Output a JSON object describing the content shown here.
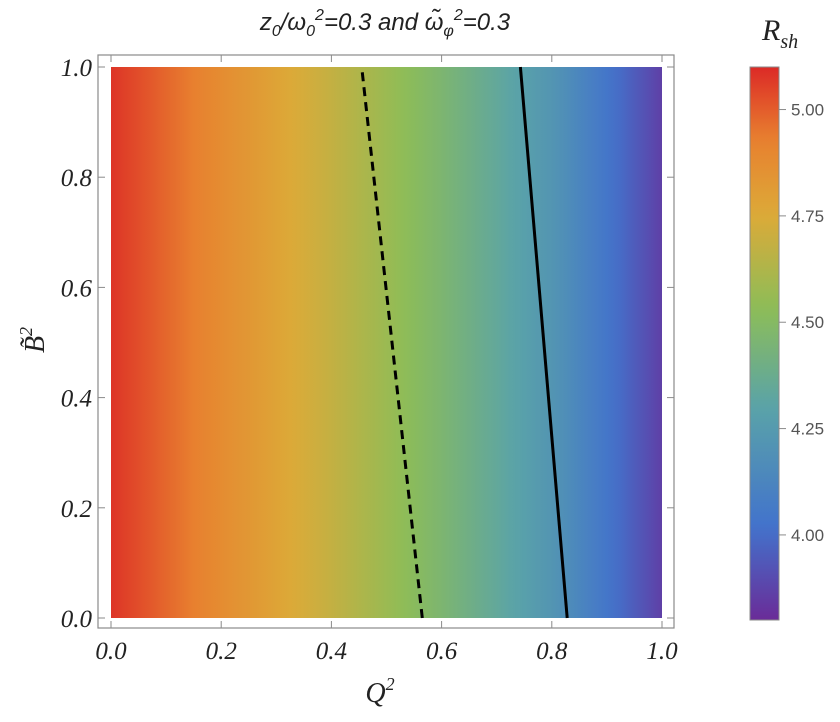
{
  "chart_data": {
    "type": "heatmap",
    "title": "z₀/ω₀²=0.3 and ω̃ᵩ²=0.3",
    "title_parts": {
      "a": "z",
      "a_sub": "0",
      "b": "/ω",
      "b_sub": "0",
      "b_sup": "2",
      "c": "=0.3 and ",
      "d": "ω̃",
      "d_sub": "φ",
      "d_sup": "2",
      "e": "=0.3"
    },
    "xlabel": "Q²",
    "xlabel_parts": {
      "base": "Q",
      "sup": "2"
    },
    "ylabel": "B̃²",
    "ylabel_parts": {
      "base": "B̃",
      "sup": "2"
    },
    "xlim": [
      0.0,
      1.0
    ],
    "ylim": [
      0.0,
      1.0
    ],
    "x_ticks": [
      "0.0",
      "0.2",
      "0.4",
      "0.6",
      "0.8",
      "1.0"
    ],
    "y_ticks": [
      "0.0",
      "0.2",
      "0.4",
      "0.6",
      "0.8",
      "1.0"
    ],
    "colorbar": {
      "title": "R",
      "title_sub": "sh",
      "range": [
        3.8,
        5.1
      ],
      "ticks": [
        "4.00",
        "4.25",
        "4.50",
        "4.75",
        "5.00"
      ]
    },
    "field_along_x": {
      "x": [
        0.0,
        0.2,
        0.4,
        0.6,
        0.8,
        1.0
      ],
      "value": [
        5.08,
        4.88,
        4.68,
        4.46,
        4.22,
        3.86
      ]
    },
    "contours": [
      {
        "style": "dashed",
        "points": [
          [
            0.565,
            0.0
          ],
          [
            0.455,
            1.0
          ]
        ]
      },
      {
        "style": "solid",
        "points": [
          [
            0.828,
            0.0
          ],
          [
            0.743,
            1.0
          ]
        ]
      }
    ],
    "colors": {
      "red": "#dc2a26",
      "orange": "#e8802f",
      "yellow": "#dcaa38",
      "green": "#8cbd58",
      "teal": "#5aa3a8",
      "blue": "#4273cc",
      "purple": "#6a2c98",
      "contour": "#000000"
    }
  }
}
